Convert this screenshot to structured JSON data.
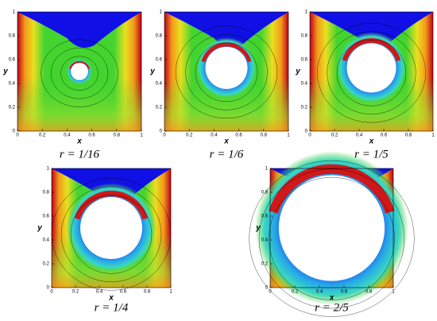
{
  "chart_data": [
    {
      "type": "contour",
      "caption": "r = 1/16",
      "xlabel": "x",
      "ylabel": "y",
      "xlim": [
        0,
        1
      ],
      "ylim": [
        0,
        1
      ],
      "xticks": [
        0,
        0.2,
        0.4,
        0.6,
        0.8,
        1
      ],
      "yticks": [
        0,
        0.2,
        0.4,
        0.6,
        0.8,
        1
      ]
    },
    {
      "type": "contour",
      "caption": "r = 1/6",
      "xlabel": "x",
      "ylabel": "y",
      "xlim": [
        0,
        1
      ],
      "ylim": [
        0,
        1
      ],
      "xticks": [
        0,
        0.2,
        0.4,
        0.6,
        0.8,
        1
      ],
      "yticks": [
        0,
        0.2,
        0.4,
        0.6,
        0.8,
        1
      ]
    },
    {
      "type": "contour",
      "caption": "r = 1/5",
      "xlabel": "x",
      "ylabel": "y",
      "xlim": [
        0,
        1
      ],
      "ylim": [
        0,
        1
      ],
      "xticks": [
        0,
        0.2,
        0.4,
        0.6,
        0.8,
        1
      ],
      "yticks": [
        0,
        0.2,
        0.4,
        0.6,
        0.8,
        1
      ]
    },
    {
      "type": "contour",
      "caption": "r = 1/4",
      "xlabel": "x",
      "ylabel": "y",
      "xlim": [
        0,
        1
      ],
      "ylim": [
        0,
        1
      ],
      "xticks": [
        0,
        0.2,
        0.4,
        0.6,
        0.8,
        1
      ],
      "yticks": [
        0,
        0.2,
        0.4,
        0.6,
        0.8,
        1
      ]
    },
    {
      "type": "contour",
      "caption": "r = 2/5",
      "xlabel": "x",
      "ylabel": "y",
      "xlim": [
        0,
        1
      ],
      "ylim": [
        0,
        1
      ],
      "xticks": [
        0,
        0.2,
        0.4,
        0.6,
        0.8,
        1
      ],
      "yticks": [
        0,
        0.2,
        0.4,
        0.6,
        0.8,
        1
      ]
    }
  ]
}
